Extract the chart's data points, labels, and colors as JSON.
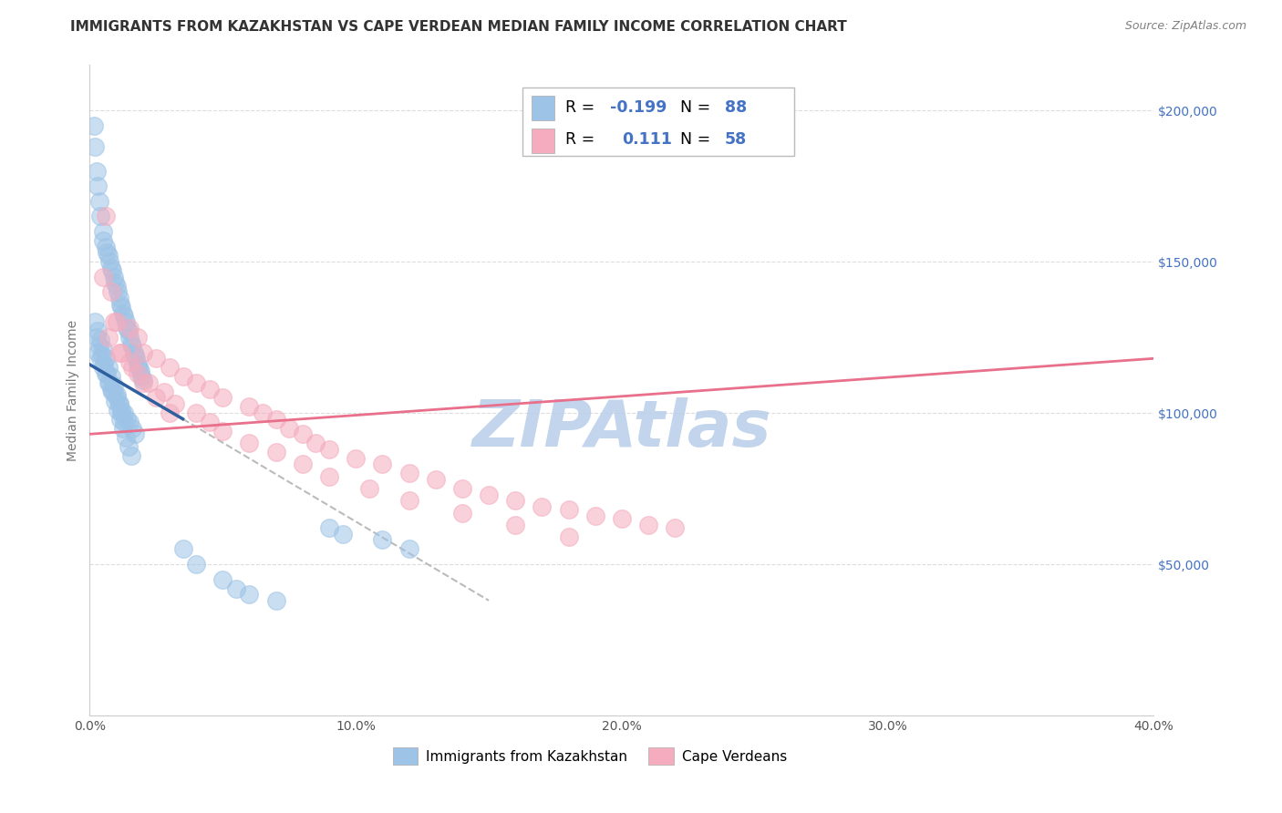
{
  "title": "IMMIGRANTS FROM KAZAKHSTAN VS CAPE VERDEAN MEDIAN FAMILY INCOME CORRELATION CHART",
  "source": "Source: ZipAtlas.com",
  "ylabel": "Median Family Income",
  "xlabel_ticks": [
    "0.0%",
    "10.0%",
    "20.0%",
    "30.0%",
    "40.0%"
  ],
  "xlabel_vals": [
    0,
    10,
    20,
    30,
    40
  ],
  "ylabel_ticks": [
    "$50,000",
    "$100,000",
    "$150,000",
    "$200,000"
  ],
  "ylabel_vals": [
    50000,
    100000,
    150000,
    200000
  ],
  "xlim": [
    0,
    40
  ],
  "ylim": [
    0,
    215000
  ],
  "blue_color": "#9DC3E6",
  "pink_color": "#F4ACBE",
  "blue_line_color": "#2E5F9E",
  "pink_line_color": "#E8708A",
  "dash_line_color": "#BBBBBB",
  "watermark_color": "#B8CEEA",
  "watermark_text": "ZIPAtlas",
  "grid_color": "#DDDDDD",
  "blue_scatter_x": [
    0.15,
    0.2,
    0.25,
    0.3,
    0.35,
    0.4,
    0.5,
    0.5,
    0.6,
    0.65,
    0.7,
    0.75,
    0.8,
    0.85,
    0.9,
    0.95,
    1.0,
    1.05,
    1.1,
    1.15,
    1.2,
    1.25,
    1.3,
    1.35,
    1.4,
    1.45,
    1.5,
    1.55,
    1.6,
    1.65,
    1.7,
    1.75,
    1.8,
    1.85,
    1.9,
    1.95,
    2.0,
    0.3,
    0.4,
    0.5,
    0.6,
    0.7,
    0.8,
    0.9,
    1.0,
    1.1,
    1.2,
    1.3,
    1.4,
    1.5,
    1.6,
    1.7,
    0.25,
    0.35,
    0.45,
    0.55,
    0.65,
    0.75,
    0.85,
    0.95,
    1.05,
    1.15,
    1.25,
    1.35,
    1.45,
    1.55,
    0.2,
    0.3,
    0.4,
    0.5,
    0.6,
    0.7,
    0.8,
    0.9,
    1.0,
    1.1,
    1.2,
    1.3,
    3.5,
    4.0,
    5.0,
    5.5,
    6.0,
    7.0,
    9.0,
    9.5,
    11.0,
    12.0
  ],
  "blue_scatter_y": [
    195000,
    188000,
    180000,
    175000,
    170000,
    165000,
    160000,
    157000,
    155000,
    153000,
    152000,
    150000,
    148000,
    147000,
    145000,
    143000,
    142000,
    140000,
    138000,
    136000,
    135000,
    133000,
    132000,
    130000,
    128000,
    127000,
    125000,
    123000,
    122000,
    120000,
    119000,
    118000,
    116000,
    115000,
    114000,
    112000,
    111000,
    120000,
    118000,
    115000,
    113000,
    110000,
    108000,
    107000,
    105000,
    103000,
    101000,
    100000,
    98000,
    97000,
    95000,
    93000,
    125000,
    122000,
    119000,
    116000,
    113000,
    110000,
    107000,
    104000,
    101000,
    98000,
    95000,
    92000,
    89000,
    86000,
    130000,
    127000,
    124000,
    121000,
    118000,
    115000,
    112000,
    109000,
    106000,
    103000,
    100000,
    97000,
    55000,
    50000,
    45000,
    42000,
    40000,
    38000,
    62000,
    60000,
    58000,
    55000
  ],
  "pink_scatter_x": [
    0.5,
    0.8,
    1.0,
    1.5,
    1.8,
    2.0,
    2.5,
    3.0,
    3.5,
    4.0,
    4.5,
    5.0,
    6.0,
    6.5,
    7.0,
    7.5,
    8.0,
    8.5,
    9.0,
    10.0,
    11.0,
    12.0,
    13.0,
    14.0,
    15.0,
    16.0,
    17.0,
    18.0,
    19.0,
    20.0,
    21.0,
    22.0,
    0.6,
    0.9,
    1.2,
    1.5,
    1.8,
    2.2,
    2.8,
    3.2,
    4.0,
    4.5,
    5.0,
    6.0,
    7.0,
    8.0,
    9.0,
    10.5,
    12.0,
    14.0,
    16.0,
    18.0,
    0.7,
    1.1,
    1.6,
    2.0,
    2.5,
    3.0
  ],
  "pink_scatter_y": [
    145000,
    140000,
    130000,
    128000,
    125000,
    120000,
    118000,
    115000,
    112000,
    110000,
    108000,
    105000,
    102000,
    100000,
    98000,
    95000,
    93000,
    90000,
    88000,
    85000,
    83000,
    80000,
    78000,
    75000,
    73000,
    71000,
    69000,
    68000,
    66000,
    65000,
    63000,
    62000,
    165000,
    130000,
    120000,
    117000,
    113000,
    110000,
    107000,
    103000,
    100000,
    97000,
    94000,
    90000,
    87000,
    83000,
    79000,
    75000,
    71000,
    67000,
    63000,
    59000,
    125000,
    120000,
    115000,
    110000,
    105000,
    100000
  ],
  "blue_line_x0": 0.0,
  "blue_line_x1": 3.5,
  "blue_line_y0": 116000,
  "blue_line_y1": 98000,
  "pink_line_x0": 0.0,
  "pink_line_x1": 40.0,
  "pink_line_y0": 93000,
  "pink_line_y1": 118000,
  "dash_line_x0": 3.5,
  "dash_line_x1": 15.0,
  "dash_line_y0": 98000,
  "dash_line_y1": 38000,
  "bottom_legend_blue": "Immigrants from Kazakhstan",
  "bottom_legend_pink": "Cape Verdeans",
  "title_fontsize": 11,
  "axis_label_fontsize": 10,
  "tick_fontsize": 10,
  "watermark_fontsize": 52,
  "right_tick_color": "#4472C4",
  "accent_color": "#4472C4"
}
